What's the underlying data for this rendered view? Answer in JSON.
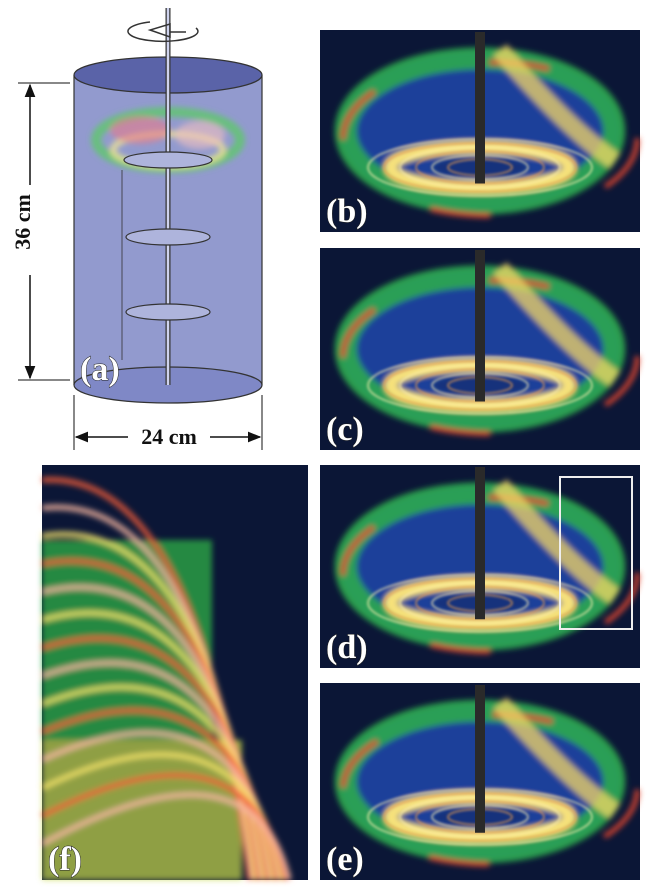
{
  "dimensions": {
    "height": "36 cm",
    "width": "24 cm"
  },
  "panels": [
    {
      "label": "(a)"
    },
    {
      "label": "(b)"
    },
    {
      "label": "(c)"
    },
    {
      "label": "(d)"
    },
    {
      "label": "(e)"
    },
    {
      "label": "(f)"
    }
  ]
}
